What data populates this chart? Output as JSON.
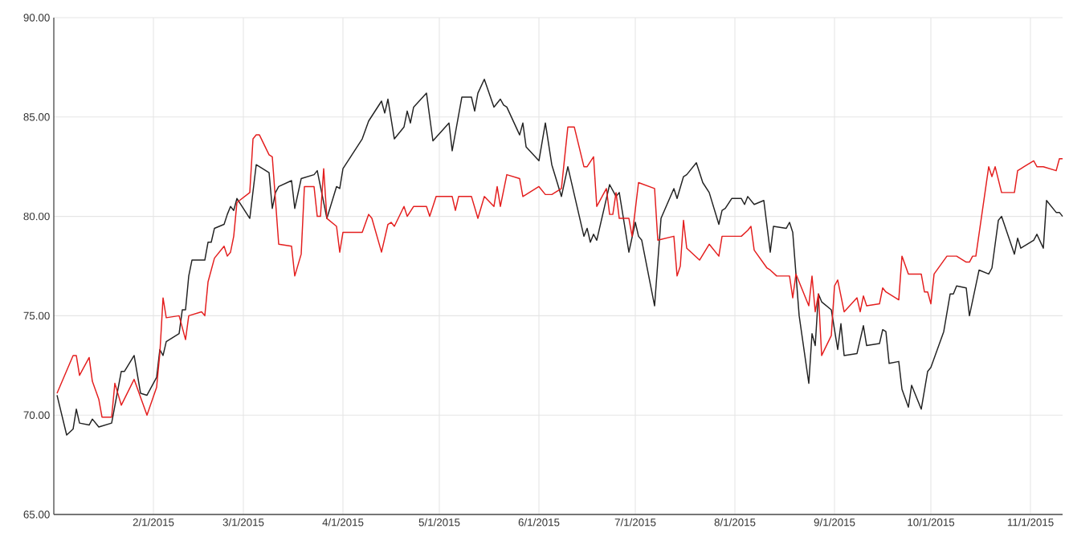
{
  "chart_data": {
    "type": "line",
    "xlim": [
      "2015-01-01",
      "2015-11-11"
    ],
    "xticks": [
      {
        "value": "2015-02-01",
        "label": "2/1/2015"
      },
      {
        "value": "2015-03-01",
        "label": "3/1/2015"
      },
      {
        "value": "2015-04-01",
        "label": "4/1/2015"
      },
      {
        "value": "2015-05-01",
        "label": "5/1/2015"
      },
      {
        "value": "2015-06-01",
        "label": "6/1/2015"
      },
      {
        "value": "2015-07-01",
        "label": "7/1/2015"
      },
      {
        "value": "2015-08-01",
        "label": "8/1/2015"
      },
      {
        "value": "2015-09-01",
        "label": "9/1/2015"
      },
      {
        "value": "2015-10-01",
        "label": "10/1/2015"
      },
      {
        "value": "2015-11-01",
        "label": "11/1/2015"
      }
    ],
    "ylim": [
      65,
      90
    ],
    "yticks": [
      {
        "value": 65,
        "label": "65.00"
      },
      {
        "value": 70,
        "label": "70.00"
      },
      {
        "value": 75,
        "label": "75.00"
      },
      {
        "value": 80,
        "label": "80.00"
      },
      {
        "value": 85,
        "label": "85.00"
      },
      {
        "value": 90,
        "label": "90.00"
      }
    ],
    "grid": true,
    "marker": "none",
    "line_style": "solid",
    "series": [
      {
        "color": "#222222",
        "x": [
          "2015-01-02",
          "2015-01-05",
          "2015-01-07",
          "2015-01-08",
          "2015-01-09",
          "2015-01-12",
          "2015-01-13",
          "2015-01-15",
          "2015-01-19",
          "2015-01-22",
          "2015-01-23",
          "2015-01-26",
          "2015-01-28",
          "2015-01-30",
          "2015-02-02",
          "2015-02-03",
          "2015-02-04",
          "2015-02-05",
          "2015-02-09",
          "2015-02-10",
          "2015-02-11",
          "2015-02-12",
          "2015-02-13",
          "2015-02-17",
          "2015-02-18",
          "2015-02-19",
          "2015-02-20",
          "2015-02-23",
          "2015-02-24",
          "2015-02-25",
          "2015-02-26",
          "2015-02-27",
          "2015-03-03",
          "2015-03-05",
          "2015-03-09",
          "2015-03-10",
          "2015-03-11",
          "2015-03-12",
          "2015-03-16",
          "2015-03-17",
          "2015-03-19",
          "2015-03-23",
          "2015-03-24",
          "2015-03-27",
          "2015-03-30",
          "2015-03-31",
          "2015-04-01",
          "2015-04-07",
          "2015-04-09",
          "2015-04-13",
          "2015-04-14",
          "2015-04-15",
          "2015-04-17",
          "2015-04-20",
          "2015-04-21",
          "2015-04-22",
          "2015-04-23",
          "2015-04-27",
          "2015-04-29",
          "2015-05-04",
          "2015-05-05",
          "2015-05-08",
          "2015-05-11",
          "2015-05-12",
          "2015-05-13",
          "2015-05-15",
          "2015-05-18",
          "2015-05-20",
          "2015-05-21",
          "2015-05-22",
          "2015-05-26",
          "2015-05-27",
          "2015-05-28",
          "2015-06-01",
          "2015-06-03",
          "2015-06-05",
          "2015-06-08",
          "2015-06-10",
          "2015-06-15",
          "2015-06-16",
          "2015-06-17",
          "2015-06-18",
          "2015-06-19",
          "2015-06-23",
          "2015-06-25",
          "2015-06-26",
          "2015-06-29",
          "2015-07-01",
          "2015-07-02",
          "2015-07-03",
          "2015-07-07",
          "2015-07-09",
          "2015-07-13",
          "2015-07-14",
          "2015-07-16",
          "2015-07-17",
          "2015-07-20",
          "2015-07-22",
          "2015-07-24",
          "2015-07-27",
          "2015-07-28",
          "2015-07-29",
          "2015-07-31",
          "2015-08-03",
          "2015-08-04",
          "2015-08-05",
          "2015-08-07",
          "2015-08-10",
          "2015-08-12",
          "2015-08-13",
          "2015-08-17",
          "2015-08-18",
          "2015-08-19",
          "2015-08-21",
          "2015-08-24",
          "2015-08-25",
          "2015-08-26",
          "2015-08-27",
          "2015-08-28",
          "2015-08-31",
          "2015-09-02",
          "2015-09-03",
          "2015-09-04",
          "2015-09-08",
          "2015-09-10",
          "2015-09-11",
          "2015-09-15",
          "2015-09-16",
          "2015-09-17",
          "2015-09-18",
          "2015-09-21",
          "2015-09-22",
          "2015-09-24",
          "2015-09-25",
          "2015-09-28",
          "2015-09-30",
          "2015-10-01",
          "2015-10-05",
          "2015-10-07",
          "2015-10-08",
          "2015-10-09",
          "2015-10-12",
          "2015-10-13",
          "2015-10-16",
          "2015-10-19",
          "2015-10-20",
          "2015-10-22",
          "2015-10-23",
          "2015-10-27",
          "2015-10-28",
          "2015-10-29",
          "2015-11-02",
          "2015-11-03",
          "2015-11-05",
          "2015-11-06",
          "2015-11-09",
          "2015-11-10",
          "2015-11-11"
        ],
        "values": [
          71.0,
          69.0,
          69.3,
          70.3,
          69.6,
          69.5,
          69.8,
          69.4,
          69.6,
          72.2,
          72.2,
          73.0,
          71.1,
          71.0,
          71.9,
          73.3,
          73.0,
          73.7,
          74.1,
          75.3,
          75.3,
          77.0,
          77.8,
          77.8,
          78.7,
          78.7,
          79.4,
          79.6,
          80.1,
          80.5,
          80.3,
          80.9,
          79.9,
          82.6,
          82.2,
          80.4,
          81.2,
          81.5,
          81.8,
          80.4,
          81.9,
          82.1,
          82.3,
          79.9,
          81.5,
          81.4,
          82.4,
          83.9,
          84.8,
          85.8,
          85.2,
          85.9,
          83.9,
          84.5,
          85.3,
          84.7,
          85.5,
          86.2,
          83.8,
          84.7,
          83.3,
          86.0,
          86.0,
          85.3,
          86.2,
          86.9,
          85.5,
          85.9,
          85.6,
          85.5,
          84.1,
          84.7,
          83.5,
          82.8,
          84.7,
          82.6,
          81.0,
          82.5,
          79.0,
          79.4,
          78.7,
          79.1,
          78.8,
          81.6,
          81.0,
          81.2,
          78.2,
          79.7,
          79.0,
          78.8,
          75.5,
          79.9,
          81.4,
          80.9,
          82.0,
          82.1,
          82.7,
          81.7,
          81.2,
          79.6,
          80.3,
          80.4,
          80.9,
          80.9,
          80.6,
          81.0,
          80.6,
          80.8,
          78.2,
          79.5,
          79.4,
          79.7,
          79.2,
          75.0,
          71.6,
          74.1,
          73.5,
          76.1,
          75.7,
          75.3,
          73.3,
          74.6,
          73.0,
          73.1,
          74.5,
          73.5,
          73.6,
          74.3,
          74.2,
          72.6,
          72.7,
          71.3,
          70.4,
          71.5,
          70.3,
          72.2,
          72.4,
          74.2,
          76.1,
          76.1,
          76.5,
          76.4,
          75.0,
          77.3,
          77.1,
          77.4,
          79.8,
          80.0,
          78.1,
          78.9,
          78.4,
          78.8,
          79.1,
          78.4,
          80.8,
          80.2,
          80.2,
          80.0
        ]
      },
      {
        "color": "#e41e1e",
        "x": [
          "2015-01-02",
          "2015-01-07",
          "2015-01-08",
          "2015-01-09",
          "2015-01-12",
          "2015-01-13",
          "2015-01-15",
          "2015-01-16",
          "2015-01-19",
          "2015-01-20",
          "2015-01-22",
          "2015-01-26",
          "2015-01-30",
          "2015-02-02",
          "2015-02-03",
          "2015-02-04",
          "2015-02-05",
          "2015-02-09",
          "2015-02-11",
          "2015-02-12",
          "2015-02-16",
          "2015-02-17",
          "2015-02-18",
          "2015-02-20",
          "2015-02-23",
          "2015-02-24",
          "2015-02-25",
          "2015-02-26",
          "2015-02-27",
          "2015-03-03",
          "2015-03-04",
          "2015-03-05",
          "2015-03-06",
          "2015-03-09",
          "2015-03-10",
          "2015-03-12",
          "2015-03-16",
          "2015-03-17",
          "2015-03-19",
          "2015-03-20",
          "2015-03-23",
          "2015-03-24",
          "2015-03-25",
          "2015-03-26",
          "2015-03-27",
          "2015-03-30",
          "2015-03-31",
          "2015-04-01",
          "2015-04-07",
          "2015-04-09",
          "2015-04-10",
          "2015-04-13",
          "2015-04-15",
          "2015-04-16",
          "2015-04-17",
          "2015-04-20",
          "2015-04-21",
          "2015-04-23",
          "2015-04-27",
          "2015-04-28",
          "2015-04-30",
          "2015-05-04",
          "2015-05-05",
          "2015-05-06",
          "2015-05-07",
          "2015-05-11",
          "2015-05-13",
          "2015-05-15",
          "2015-05-18",
          "2015-05-19",
          "2015-05-20",
          "2015-05-22",
          "2015-05-26",
          "2015-05-27",
          "2015-06-01",
          "2015-06-03",
          "2015-06-05",
          "2015-06-08",
          "2015-06-10",
          "2015-06-12",
          "2015-06-15",
          "2015-06-16",
          "2015-06-18",
          "2015-06-19",
          "2015-06-22",
          "2015-06-23",
          "2015-06-24",
          "2015-06-25",
          "2015-06-26",
          "2015-06-29",
          "2015-06-30",
          "2015-07-02",
          "2015-07-07",
          "2015-07-08",
          "2015-07-13",
          "2015-07-14",
          "2015-07-15",
          "2015-07-16",
          "2015-07-17",
          "2015-07-21",
          "2015-07-24",
          "2015-07-27",
          "2015-07-28",
          "2015-07-30",
          "2015-08-03",
          "2015-08-05",
          "2015-08-06",
          "2015-08-07",
          "2015-08-11",
          "2015-08-12",
          "2015-08-14",
          "2015-08-18",
          "2015-08-19",
          "2015-08-20",
          "2015-08-24",
          "2015-08-25",
          "2015-08-26",
          "2015-08-27",
          "2015-08-28",
          "2015-08-31",
          "2015-09-01",
          "2015-09-02",
          "2015-09-04",
          "2015-09-08",
          "2015-09-09",
          "2015-09-10",
          "2015-09-11",
          "2015-09-15",
          "2015-09-16",
          "2015-09-17",
          "2015-09-21",
          "2015-09-22",
          "2015-09-24",
          "2015-09-28",
          "2015-09-29",
          "2015-09-30",
          "2015-10-01",
          "2015-10-02",
          "2015-10-06",
          "2015-10-09",
          "2015-10-12",
          "2015-10-13",
          "2015-10-14",
          "2015-10-15",
          "2015-10-19",
          "2015-10-20",
          "2015-10-21",
          "2015-10-23",
          "2015-10-27",
          "2015-10-28",
          "2015-10-30",
          "2015-11-02",
          "2015-11-03",
          "2015-11-05",
          "2015-11-09",
          "2015-11-10",
          "2015-11-11"
        ],
        "values": [
          71.1,
          73.0,
          73.0,
          72.0,
          72.9,
          71.7,
          70.8,
          69.9,
          69.9,
          71.6,
          70.5,
          71.8,
          70.0,
          71.4,
          73.1,
          75.9,
          74.9,
          75.0,
          73.8,
          75.0,
          75.2,
          75.0,
          76.7,
          77.9,
          78.5,
          78.0,
          78.2,
          79.0,
          80.7,
          81.2,
          83.9,
          84.1,
          84.1,
          83.1,
          83.0,
          78.6,
          78.5,
          77.0,
          78.1,
          81.5,
          81.5,
          80.0,
          80.0,
          82.4,
          79.9,
          79.5,
          78.2,
          79.2,
          79.2,
          80.1,
          79.9,
          78.2,
          79.6,
          79.7,
          79.5,
          80.5,
          80.0,
          80.5,
          80.5,
          80.0,
          81.0,
          81.0,
          81.0,
          80.3,
          81.0,
          81.0,
          79.9,
          81.0,
          80.5,
          81.5,
          80.5,
          82.1,
          81.9,
          81.0,
          81.5,
          81.1,
          81.1,
          81.4,
          84.5,
          84.5,
          82.5,
          82.5,
          83.0,
          80.5,
          81.4,
          80.1,
          80.1,
          81.2,
          79.9,
          79.9,
          79.0,
          81.7,
          81.4,
          78.8,
          79.0,
          77.0,
          77.5,
          79.8,
          78.4,
          77.8,
          78.6,
          78.0,
          79.0,
          79.0,
          79.0,
          79.3,
          79.5,
          78.3,
          77.4,
          77.3,
          77.0,
          77.0,
          75.9,
          77.1,
          75.5,
          77.0,
          75.2,
          76.1,
          73.0,
          74.0,
          76.5,
          76.8,
          75.2,
          75.9,
          75.2,
          76.0,
          75.5,
          75.6,
          76.4,
          76.2,
          75.8,
          78.0,
          77.1,
          77.1,
          76.2,
          76.2,
          75.6,
          77.1,
          78.0,
          78.0,
          77.7,
          77.7,
          78.0,
          78.0,
          82.5,
          82.0,
          82.5,
          81.2,
          81.2,
          82.3,
          82.5,
          82.8,
          82.5,
          82.5,
          82.3,
          82.9,
          82.9
        ]
      }
    ]
  }
}
